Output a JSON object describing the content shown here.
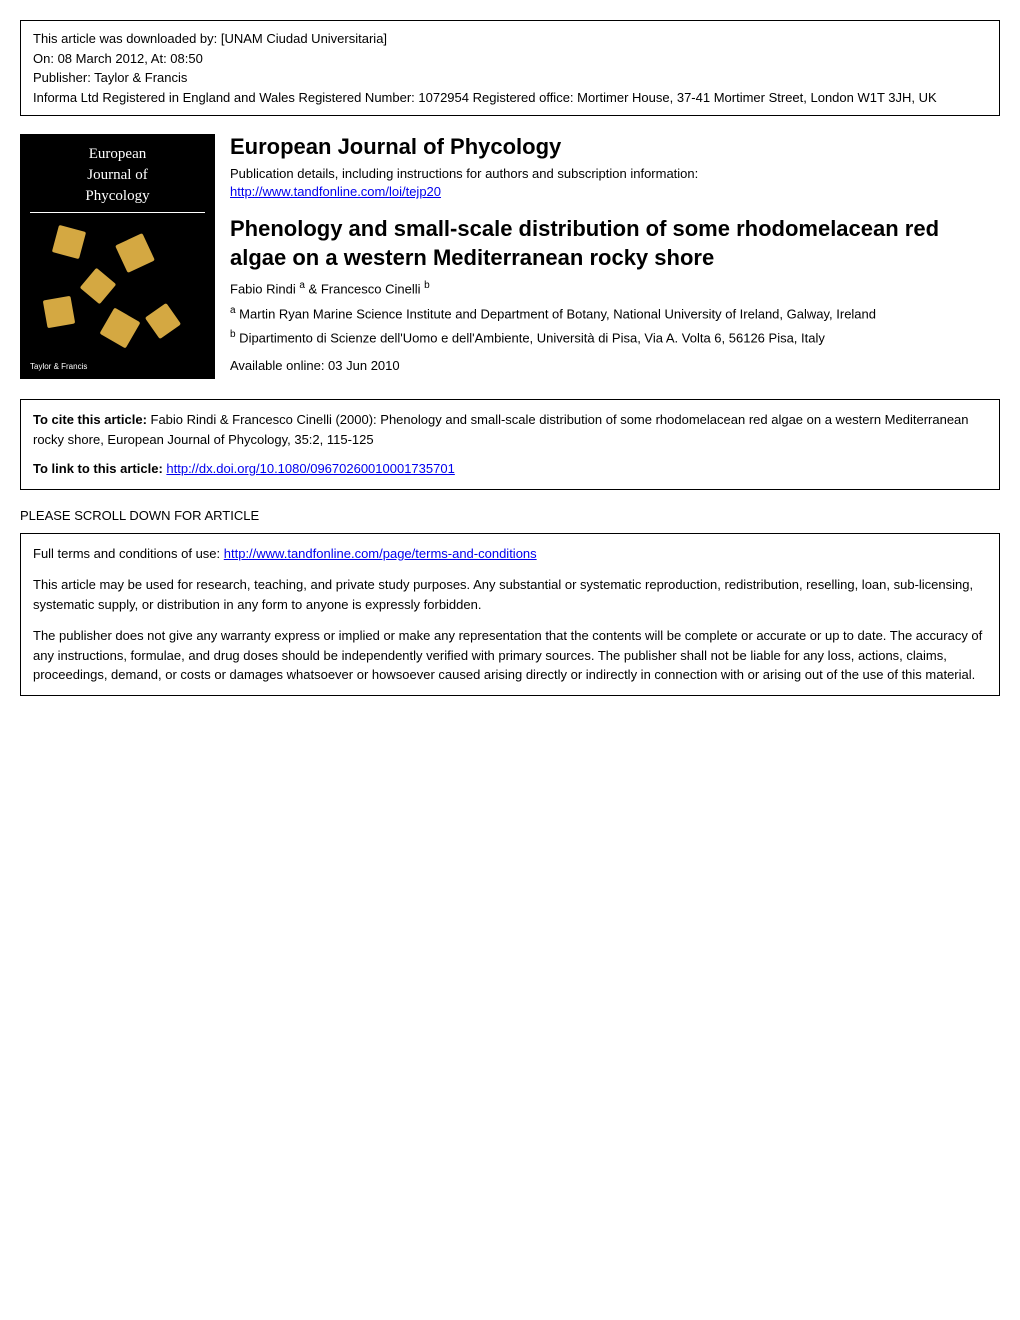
{
  "download_info": {
    "line1": "This article was downloaded by: [UNAM Ciudad Universitaria]",
    "line2": "On: 08 March 2012, At: 08:50",
    "line3": "Publisher: Taylor & Francis",
    "line4": "Informa Ltd Registered in England and Wales Registered Number: 1072954 Registered office: Mortimer House, 37-41 Mortimer Street, London W1T 3JH, UK"
  },
  "cover": {
    "title_line1": "European",
    "title_line2": "Journal of",
    "title_line3": "Phycology",
    "footer": "Taylor & Francis"
  },
  "journal": {
    "title": "European Journal of Phycology",
    "pub_details": "Publication details, including instructions for authors and subscription information:",
    "pub_link": "http://www.tandfonline.com/loi/tejp20"
  },
  "article": {
    "title": "Phenology and small-scale distribution of some rhodomelacean red algae on a western Mediterranean rocky shore",
    "authors": "Fabio Rindi ",
    "authors_sup_a": "a",
    "authors_amp": " & Francesco Cinelli ",
    "authors_sup_b": "b",
    "affiliation_a_sup": "a",
    "affiliation_a": " Martin Ryan Marine Science Institute and Department of Botany, National University of Ireland, Galway, Ireland",
    "affiliation_b_sup": "b",
    "affiliation_b": " Dipartimento di Scienze dell'Uomo e dell'Ambiente, Università di Pisa, Via A. Volta 6, 56126 Pisa, Italy",
    "available": "Available online: 03 Jun 2010"
  },
  "citation": {
    "cite_label": "To cite this article: ",
    "cite_text": "Fabio Rindi & Francesco Cinelli (2000): Phenology and small-scale distribution of some rhodomelacean red algae on a western Mediterranean rocky shore, European Journal of Phycology, 35:2, 115-125",
    "link_label": "To link to this article:  ",
    "link_url": "http://dx.doi.org/10.1080/09670260010001735701"
  },
  "scroll_notice": "PLEASE SCROLL DOWN FOR ARTICLE",
  "terms": {
    "terms_label": "Full terms and conditions of use: ",
    "terms_link": "http://www.tandfonline.com/page/terms-and-conditions",
    "para1": "This article may be used for research, teaching, and private study purposes. Any substantial or systematic reproduction, redistribution, reselling, loan, sub-licensing, systematic supply, or distribution in any form to anyone is expressly forbidden.",
    "para2": "The publisher does not give any warranty express or implied or make any representation that the contents will be complete or accurate or up to date. The accuracy of any instructions, formulae, and drug doses should be independently verified with primary sources. The publisher shall not be liable for any loss, actions, claims, proceedings, demand, or costs or damages whatsoever or howsoever caused arising directly or indirectly in connection with or arising out of the use of this material."
  },
  "colors": {
    "text": "#000000",
    "background": "#ffffff",
    "link": "#0000ee",
    "cover_bg": "#000000",
    "cover_accent": "#d4a842"
  }
}
